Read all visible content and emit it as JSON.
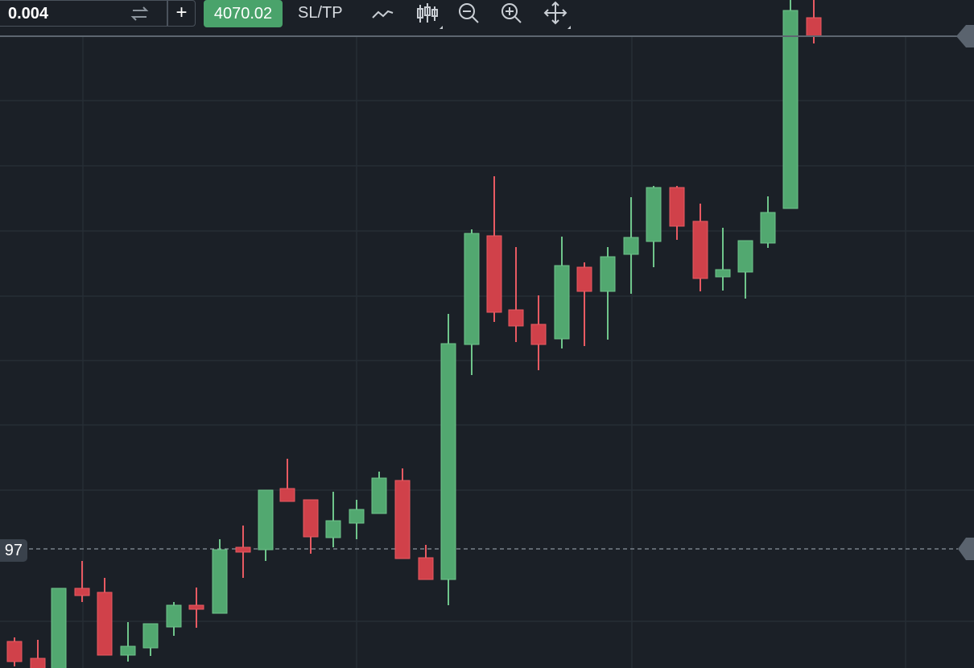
{
  "toolbar": {
    "quantity": "0.004",
    "plus": "+",
    "price_button": "4070.02",
    "sl_tp": "SL/TP"
  },
  "price_line_label": "97"
}
